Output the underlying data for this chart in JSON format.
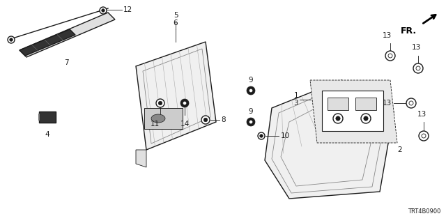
{
  "bg_color": "#ffffff",
  "part_code": "TRT4B0900",
  "line_color": "#1a1a1a",
  "gray_color": "#888888",
  "light_gray": "#cccccc",
  "fig_w": 6.4,
  "fig_h": 3.2,
  "dpi": 100
}
